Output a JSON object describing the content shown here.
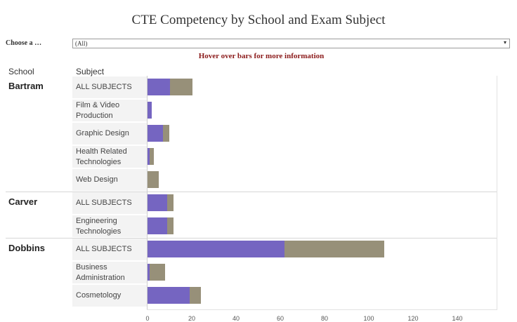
{
  "title": "CTE Competency by School and Exam Subject",
  "filter": {
    "label": "Choose a …",
    "value": "(All)",
    "arrow": "▾"
  },
  "hover_note": "Hover over bars for more information",
  "headers": {
    "school": "School",
    "subject": "Subject"
  },
  "colors": {
    "series_a": "#7565c1",
    "series_b": "#979079",
    "hover_note": "#8b1a1a"
  },
  "chart_data": {
    "type": "bar",
    "orientation": "horizontal",
    "stacked": true,
    "xlim": [
      0,
      160
    ],
    "xticks": [
      0,
      20,
      40,
      60,
      80,
      100,
      120,
      140
    ],
    "series_colors": [
      "#7565c1",
      "#979079"
    ],
    "rows": [
      {
        "school": "Bartram",
        "subject_lines": [
          "ALL SUBJECTS"
        ],
        "values": [
          10,
          10
        ]
      },
      {
        "school": "",
        "subject_lines": [
          "Film & Video",
          "Production"
        ],
        "values": [
          2,
          0
        ]
      },
      {
        "school": "",
        "subject_lines": [
          "Graphic Design"
        ],
        "values": [
          7,
          3
        ]
      },
      {
        "school": "",
        "subject_lines": [
          "Health Related",
          "Technologies"
        ],
        "values": [
          1,
          2
        ]
      },
      {
        "school": "",
        "subject_lines": [
          "Web Design"
        ],
        "values": [
          0,
          5
        ]
      },
      {
        "school": "Carver",
        "subject_lines": [
          "ALL SUBJECTS"
        ],
        "values": [
          9,
          3
        ]
      },
      {
        "school": "",
        "subject_lines": [
          "Engineering",
          "Technologies"
        ],
        "values": [
          9,
          3
        ]
      },
      {
        "school": "Dobbins",
        "subject_lines": [
          "ALL SUBJECTS"
        ],
        "values": [
          62,
          45
        ]
      },
      {
        "school": "",
        "subject_lines": [
          "Business",
          "Administration"
        ],
        "values": [
          1,
          7
        ]
      },
      {
        "school": "",
        "subject_lines": [
          "Cosmetology"
        ],
        "values": [
          19,
          5
        ]
      }
    ]
  }
}
